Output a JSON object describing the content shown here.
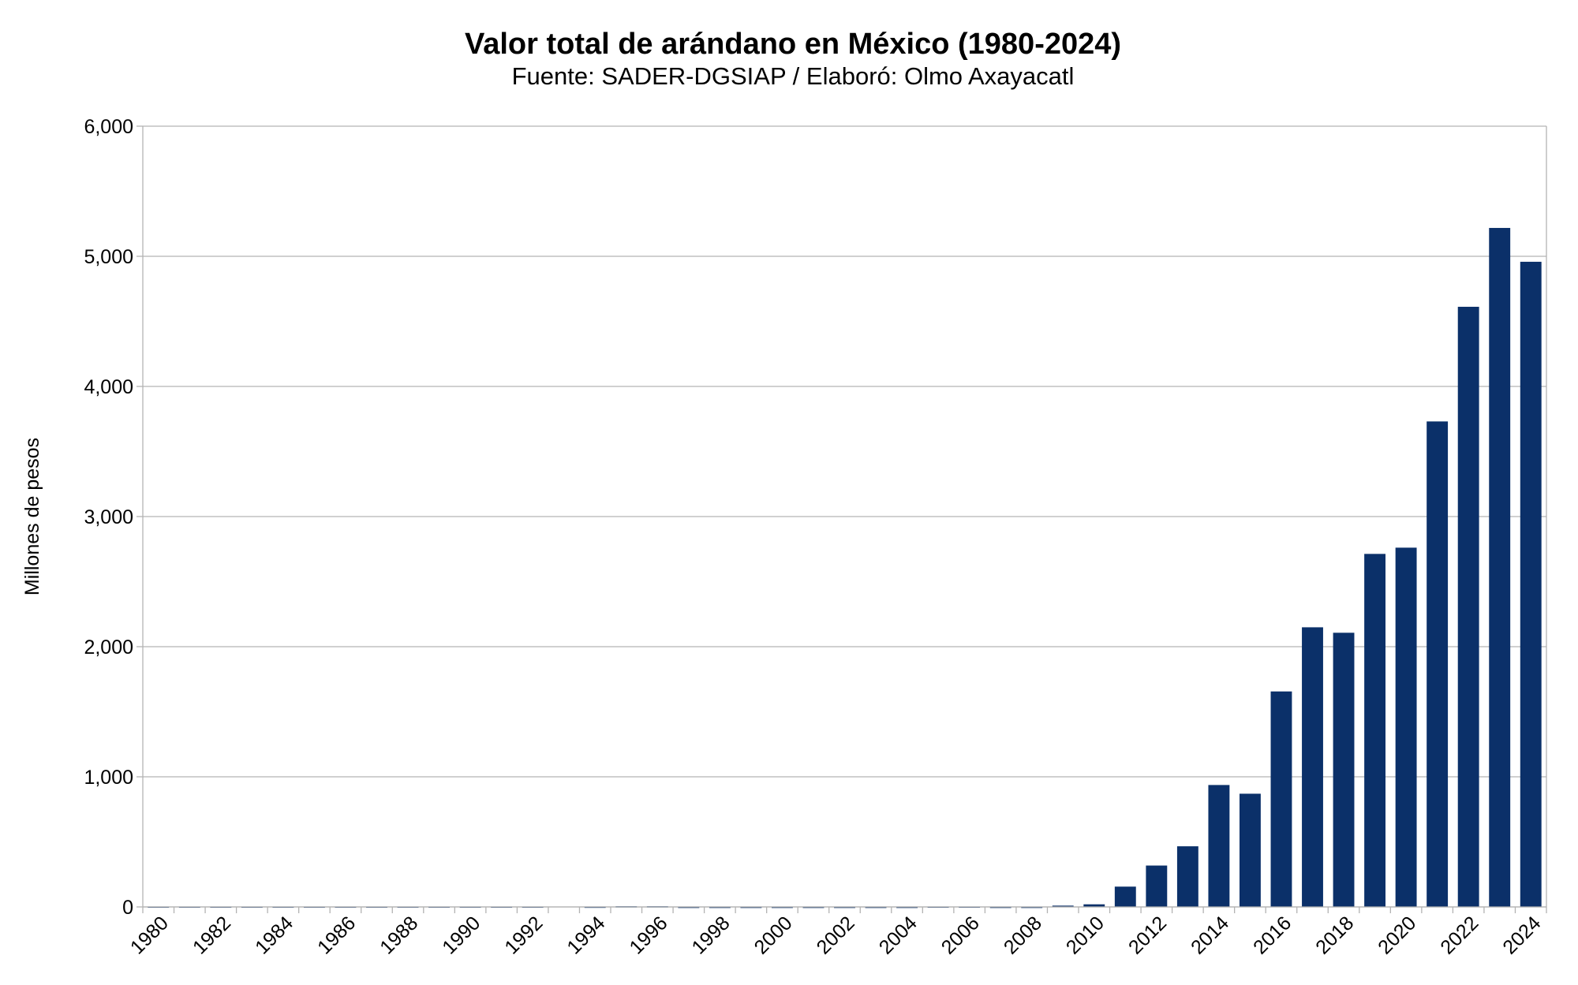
{
  "chart_data": {
    "type": "bar",
    "title": "Valor total de arándano en México (1980-2024)",
    "subtitle": "Fuente: SADER-DGSIAP / Elaboró: Olmo Axayacatl",
    "xlabel": "",
    "ylabel": "Millones de pesos",
    "ylim": [
      0,
      6000
    ],
    "yticks": [
      0,
      1000,
      2000,
      3000,
      4000,
      5000,
      6000
    ],
    "ytick_labels": [
      "0",
      "1,000",
      "2,000",
      "3,000",
      "4,000",
      "5,000",
      "6,000"
    ],
    "grid": true,
    "legend": "none",
    "bar_color": "#0b3069",
    "categories": [
      "1980",
      "1981",
      "1982",
      "1983",
      "1984",
      "1985",
      "1986",
      "1987",
      "1988",
      "1989",
      "1990",
      "1991",
      "1992",
      "1993",
      "1994",
      "1995",
      "1996",
      "1997",
      "1998",
      "1999",
      "2000",
      "2001",
      "2002",
      "2003",
      "2004",
      "2005",
      "2006",
      "2007",
      "2008",
      "2009",
      "2010",
      "2011",
      "2012",
      "2013",
      "2014",
      "2015",
      "2016",
      "2017",
      "2018",
      "2019",
      "2020",
      "2021",
      "2022",
      "2023",
      "2024"
    ],
    "xtick_labels": [
      "1980",
      "1982",
      "1984",
      "1986",
      "1988",
      "1990",
      "1992",
      "1994",
      "1996",
      "1998",
      "2000",
      "2002",
      "2004",
      "2006",
      "2008",
      "2010",
      "2012",
      "2014",
      "2016",
      "2018",
      "2020",
      "2022",
      "2024"
    ],
    "values": [
      3,
      3,
      3,
      3,
      3,
      3,
      3,
      3,
      3,
      3,
      3,
      3,
      3,
      0,
      2,
      5,
      5,
      1,
      1,
      1,
      1,
      1,
      1,
      1,
      1,
      3,
      3,
      1,
      1,
      10,
      20,
      156,
      318,
      466,
      937,
      870,
      1656,
      2149,
      2107,
      2713,
      2761,
      3731,
      4612,
      5218,
      4958
    ]
  }
}
